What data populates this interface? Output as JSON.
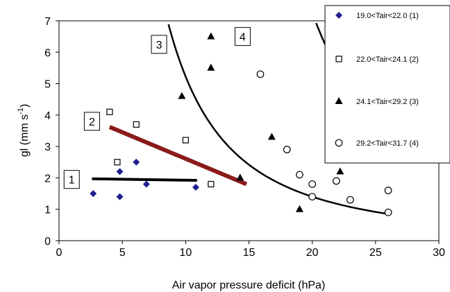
{
  "chart_data": {
    "type": "scatter",
    "xlabel": "Air vapor pressure deficit (hPa)",
    "ylabel_main": "gl (mm s",
    "ylabel_exp": "-1",
    "ylabel_close": ")",
    "xlim": [
      0,
      30
    ],
    "ylim": [
      0,
      7
    ],
    "x_ticks": [
      0,
      5,
      10,
      15,
      20,
      25,
      30
    ],
    "y_ticks": [
      0,
      1,
      2,
      3,
      4,
      5,
      6,
      7
    ],
    "grid": false,
    "legend_position": "top-right",
    "series": [
      {
        "legend": "19.0<Tair<22.0  (1)",
        "marker": "diamond",
        "color": "#1f1f8f",
        "points": [
          [
            2.7,
            1.5
          ],
          [
            4.8,
            1.4
          ],
          [
            4.8,
            2.2
          ],
          [
            6.1,
            2.5
          ],
          [
            6.9,
            1.8
          ],
          [
            10.8,
            1.7
          ]
        ]
      },
      {
        "legend": "22.0<Tair<24.1  (2)",
        "marker": "open-square",
        "color": "#000000",
        "points": [
          [
            4.0,
            4.1
          ],
          [
            4.6,
            2.5
          ],
          [
            6.1,
            3.7
          ],
          [
            10.0,
            3.2
          ],
          [
            12.0,
            1.8
          ]
        ]
      },
      {
        "legend": "24.1<Tair<29.2  (3)",
        "marker": "filled-triangle",
        "color": "#000000",
        "points": [
          [
            9.7,
            4.6
          ],
          [
            12.0,
            6.5
          ],
          [
            12.0,
            5.5
          ],
          [
            14.3,
            2.0
          ],
          [
            16.8,
            3.3
          ],
          [
            19.0,
            1.0
          ],
          [
            22.2,
            2.2
          ]
        ]
      },
      {
        "legend": "29.2<Tair<31.7  (4)",
        "marker": "open-circle",
        "color": "#000000",
        "points": [
          [
            15.9,
            5.3
          ],
          [
            18.0,
            2.9
          ],
          [
            19.0,
            2.1
          ],
          [
            20.0,
            1.8
          ],
          [
            20.0,
            1.4
          ],
          [
            21.9,
            1.9
          ],
          [
            23.0,
            1.3
          ],
          [
            26.0,
            1.6
          ],
          [
            26.0,
            0.9
          ]
        ]
      }
    ],
    "fit_lines": [
      {
        "label": "1",
        "kind": "linear",
        "color": "#000000",
        "x0": 2.6,
        "y0": 1.97,
        "x1": 10.9,
        "y1": 1.92
      },
      {
        "label": "2",
        "kind": "linear",
        "color": "#8b1a1a",
        "x0": 4.0,
        "y0": 3.62,
        "x1": 14.8,
        "y1": 1.8
      },
      {
        "label": "3",
        "kind": "power",
        "color": "#000000",
        "a": 415,
        "b": 1.9,
        "x_start": 8.5,
        "x_end": 26.0
      },
      {
        "label": "4",
        "kind": "power",
        "color": "#000000",
        "a": 58000,
        "b": 3.0,
        "x_start": 12.6,
        "x_end": 26.0
      }
    ],
    "box_labels": [
      {
        "text": "1",
        "x": 1.0,
        "y": 1.95
      },
      {
        "text": "2",
        "x": 2.6,
        "y": 3.8
      },
      {
        "text": "3",
        "x": 7.9,
        "y": 6.25
      },
      {
        "text": "4",
        "x": 14.5,
        "y": 6.5
      }
    ]
  }
}
